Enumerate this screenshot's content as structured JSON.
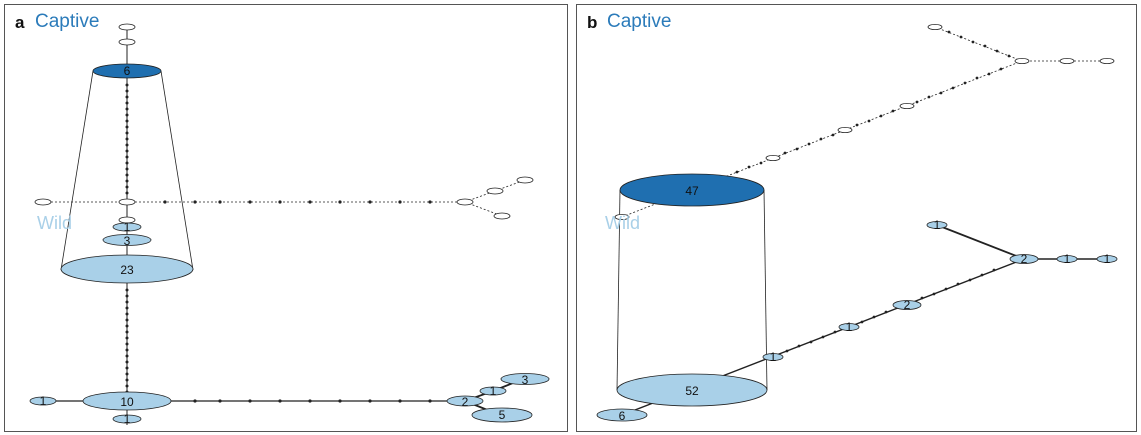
{
  "colors": {
    "captive": "#2b7bba",
    "captive_node": "#1f6fb0",
    "wild": "#a9d0e8",
    "wild_label": "#a9d0e8",
    "unsampled": "#ffffff",
    "edge": "#222222"
  },
  "panels": [
    {
      "letter": "a",
      "captive_label": "Captive",
      "wild_label": "Wild",
      "nodes": [
        {
          "label": "6",
          "kind": "captive"
        },
        {
          "label": "23",
          "kind": "wild"
        },
        {
          "label": "3",
          "kind": "wild"
        },
        {
          "label": "1",
          "kind": "wild"
        },
        {
          "label": "10",
          "kind": "wild"
        },
        {
          "label": "1",
          "kind": "wild"
        },
        {
          "label": "1",
          "kind": "wild"
        },
        {
          "label": "2",
          "kind": "wild"
        },
        {
          "label": "1",
          "kind": "wild"
        },
        {
          "label": "3",
          "kind": "wild"
        },
        {
          "label": "5",
          "kind": "wild"
        }
      ]
    },
    {
      "letter": "b",
      "captive_label": "Captive",
      "wild_label": "Wild",
      "nodes": [
        {
          "label": "47",
          "kind": "captive"
        },
        {
          "label": "52",
          "kind": "wild"
        },
        {
          "label": "6",
          "kind": "wild"
        },
        {
          "label": "1",
          "kind": "wild"
        },
        {
          "label": "1",
          "kind": "wild"
        },
        {
          "label": "2",
          "kind": "wild"
        },
        {
          "label": "1",
          "kind": "wild"
        },
        {
          "label": "2",
          "kind": "wild"
        },
        {
          "label": "1",
          "kind": "wild"
        },
        {
          "label": "1",
          "kind": "wild"
        }
      ]
    }
  ]
}
